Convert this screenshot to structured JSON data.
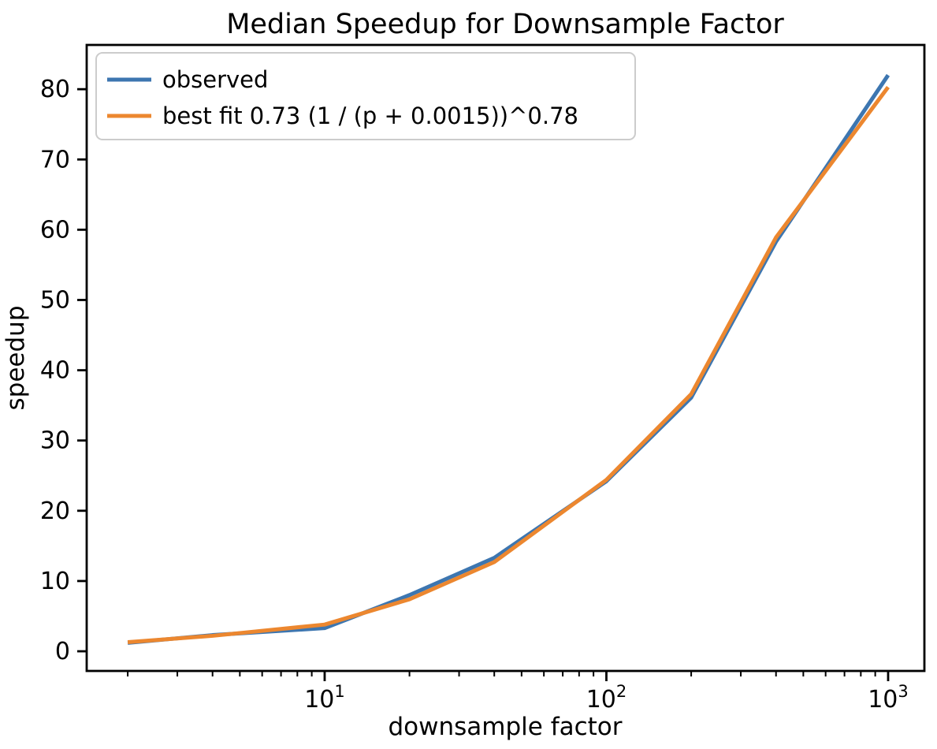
{
  "figure": {
    "background": "#ffffff",
    "text_color": "#000000"
  },
  "chart_data": {
    "type": "line",
    "title": "Median Speedup for Downsample Factor",
    "xlabel": "downsample factor",
    "ylabel": "speedup",
    "x_scale": "log",
    "y_scale": "linear",
    "grid": false,
    "x": [
      2,
      4,
      10,
      20,
      40,
      100,
      200,
      400,
      1000
    ],
    "series": [
      {
        "name": "observed",
        "color": "#3d76b0",
        "values": [
          1.2,
          2.3,
          3.3,
          8.0,
          13.3,
          24.2,
          36.1,
          58.3,
          82.0
        ]
      },
      {
        "name": "best fit 0.73 (1 / (p + 0.0015))^0.78",
        "color": "#ec872f",
        "values": [
          1.3,
          2.2,
          3.8,
          7.4,
          12.7,
          24.4,
          36.6,
          58.9,
          80.3
        ]
      }
    ],
    "xlim": [
      1.43,
      1345
    ],
    "ylim": [
      -2.8,
      86.3
    ],
    "x_major_ticks": [
      {
        "value": 10,
        "label_base": "10",
        "label_exp": "1"
      },
      {
        "value": 100,
        "label_base": "10",
        "label_exp": "2"
      },
      {
        "value": 1000,
        "label_base": "10",
        "label_exp": "3"
      }
    ],
    "x_minor_ticks": [
      2,
      3,
      4,
      5,
      6,
      7,
      8,
      9,
      20,
      30,
      40,
      50,
      60,
      70,
      80,
      90,
      200,
      300,
      400,
      500,
      600,
      700,
      800,
      900
    ],
    "y_ticks": [
      {
        "value": 0,
        "label": "0"
      },
      {
        "value": 10,
        "label": "10"
      },
      {
        "value": 20,
        "label": "20"
      },
      {
        "value": 30,
        "label": "30"
      },
      {
        "value": 40,
        "label": "40"
      },
      {
        "value": 50,
        "label": "50"
      },
      {
        "value": 60,
        "label": "60"
      },
      {
        "value": 70,
        "label": "70"
      },
      {
        "value": 80,
        "label": "80"
      }
    ],
    "legend_position": "upper left",
    "axis_color": "#000000",
    "legend_border_color": "#cccccc",
    "legend_background": "#ffffff"
  }
}
